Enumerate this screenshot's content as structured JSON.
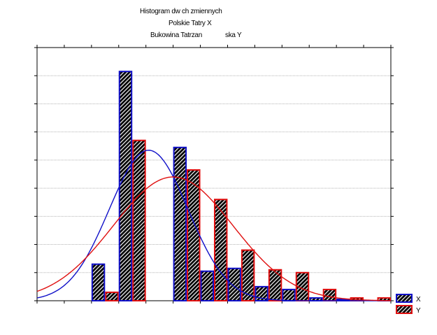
{
  "title_lines": [
    "Histogram dw ch zmiennych",
    "Polskie Tatry X",
    "Bukowina Tatrzan",
    "ska Y"
  ],
  "chart_data": {
    "type": "bar",
    "title": "Histogram dw ch zmiennych",
    "subtitle": "Polskie Tatry X / Bukowina Tatrzan ska Y",
    "x_bins": 13,
    "ylim": [
      0,
      9
    ],
    "grid": true,
    "legend_position": "bottom-right",
    "series": [
      {
        "name": "X",
        "color": "#1010c8",
        "values": [
          0,
          0,
          1.3,
          8.15,
          0,
          5.45,
          1.05,
          1.15,
          0.5,
          0.4,
          0.1,
          0.05,
          0
        ],
        "fit_curve": {
          "mean": 4.1,
          "sd": 1.45,
          "peak": 5.35
        }
      },
      {
        "name": "Y",
        "color": "#e01010",
        "values": [
          0,
          0,
          0.3,
          5.7,
          0,
          4.65,
          3.6,
          1.8,
          1.1,
          1.0,
          0.4,
          0.1,
          0.1
        ],
        "fit_curve": {
          "mean": 5.0,
          "sd": 2.2,
          "peak": 4.4
        }
      }
    ]
  }
}
